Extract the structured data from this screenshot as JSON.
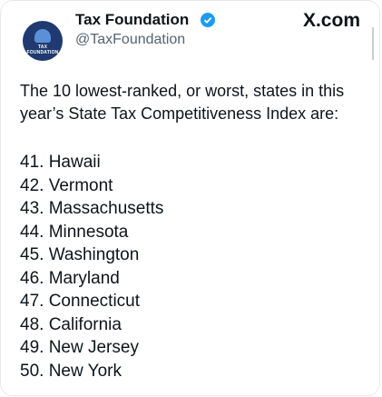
{
  "header": {
    "name": "Tax Foundation",
    "handle": "@TaxFoundation",
    "brand": "X.com",
    "avatar_text": "TAX FOUNDATION"
  },
  "body": {
    "intro": "The 10 lowest-ranked, or worst, states in this year’s State Tax Competitiveness Index are:",
    "list": [
      "41. Hawaii",
      "42. Vermont",
      "43. Massachusetts",
      "44. Minnesota",
      "45. Washington",
      "46. Maryland",
      "47. Connecticut",
      "48. California",
      "49. New Jersey",
      "50. New York"
    ]
  }
}
